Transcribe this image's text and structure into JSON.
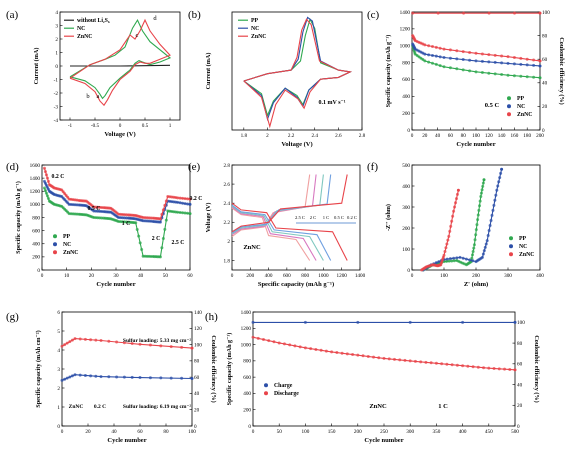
{
  "figure": "battery electrochemistry multi-panel figure",
  "chart_data": [
    {
      "panel": "(a)",
      "type": "line",
      "xlabel": "Voltage (V)",
      "ylabel": "Current (mA)",
      "xlim": [
        -1.2,
        1.2
      ],
      "ylim": [
        -4,
        4
      ],
      "xticks": [
        -1.0,
        -0.5,
        0.0,
        0.5,
        1.0
      ],
      "yticks": [
        -4,
        -3,
        -2,
        -1,
        0,
        1,
        2,
        3,
        4
      ],
      "legend": [
        "without Li₂S₆",
        "NC",
        "ZnNC"
      ],
      "annotations": [
        "a",
        "b",
        "c",
        "d"
      ],
      "series": [
        {
          "name": "without Li₂S₆",
          "color": "#222222",
          "x": [
            -1.0,
            0.0,
            1.0
          ],
          "y": [
            0.0,
            0.0,
            0.05
          ]
        },
        {
          "name": "NC",
          "color": "#2fa84f",
          "x": [
            -1.0,
            -0.7,
            -0.5,
            -0.4,
            -0.35,
            -0.3,
            -0.2,
            0.0,
            0.2,
            0.3,
            0.38,
            0.45,
            0.6,
            0.8,
            1.0,
            0.8,
            0.6,
            0.45,
            0.35,
            0.25,
            0.1,
            -0.1,
            -0.3,
            -0.6,
            -1.0
          ],
          "y": [
            -0.8,
            -1.1,
            -1.6,
            -2.1,
            -2.4,
            -2.2,
            -1.6,
            -0.9,
            -0.3,
            0.2,
            0.4,
            0.3,
            0.1,
            0.3,
            0.6,
            1.2,
            1.8,
            2.6,
            3.4,
            2.8,
            1.4,
            0.8,
            0.5,
            0.1,
            -0.8
          ]
        },
        {
          "name": "ZnNC",
          "color": "#e8444a",
          "x": [
            -1.0,
            -0.7,
            -0.5,
            -0.4,
            -0.32,
            -0.25,
            -0.15,
            0.0,
            0.2,
            0.3,
            0.4,
            0.5,
            0.6,
            0.8,
            1.0,
            0.8,
            0.6,
            0.5,
            0.4,
            0.3,
            0.2,
            0.0,
            -0.3,
            -0.6,
            -1.0
          ],
          "y": [
            -0.9,
            -1.3,
            -1.9,
            -2.6,
            -2.9,
            -2.5,
            -1.8,
            -1.0,
            -0.4,
            0.1,
            0.3,
            0.2,
            0.2,
            0.5,
            0.8,
            1.6,
            2.6,
            3.4,
            2.6,
            2.0,
            2.3,
            1.2,
            0.5,
            0.1,
            -0.9
          ]
        }
      ]
    },
    {
      "panel": "(b)",
      "type": "line",
      "xlabel": "Voltage (V)",
      "ylabel": "Current (mA)",
      "xlim": [
        1.7,
        2.8
      ],
      "ylim": [
        -3.0,
        3.5
      ],
      "xticks": [
        1.8,
        2.0,
        2.2,
        2.4,
        2.6,
        2.8
      ],
      "yticks": [],
      "legend": [
        "PP",
        "NC",
        "ZnNC"
      ],
      "annotation": "0.1 mV s⁻¹",
      "series": [
        {
          "name": "PP",
          "color": "#2fa84f",
          "x": [
            1.8,
            1.95,
            2.0,
            2.05,
            2.15,
            2.25,
            2.3,
            2.35,
            2.45,
            2.6,
            2.7,
            2.6,
            2.45,
            2.4,
            2.36,
            2.32,
            2.28,
            2.2,
            2.0,
            1.8
          ],
          "y": [
            -0.3,
            -1.0,
            -2.2,
            -1.4,
            -0.7,
            -1.1,
            -1.6,
            -0.8,
            -0.2,
            -0.1,
            0.2,
            0.3,
            0.7,
            2.6,
            3.1,
            2.2,
            0.8,
            0.3,
            0.1,
            -0.3
          ]
        },
        {
          "name": "NC",
          "color": "#2c4fa8",
          "x": [
            1.8,
            1.95,
            2.0,
            2.05,
            2.15,
            2.25,
            2.3,
            2.35,
            2.45,
            2.6,
            2.7,
            2.6,
            2.45,
            2.38,
            2.34,
            2.3,
            2.26,
            2.2,
            2.0,
            1.8
          ],
          "y": [
            -0.3,
            -1.1,
            -2.4,
            -1.5,
            -0.7,
            -1.2,
            -1.7,
            -0.8,
            -0.2,
            -0.1,
            0.2,
            0.3,
            0.8,
            3.0,
            3.2,
            2.4,
            0.9,
            0.3,
            0.1,
            -0.3
          ]
        },
        {
          "name": "ZnNC",
          "color": "#e8444a",
          "x": [
            1.8,
            1.95,
            2.02,
            2.07,
            2.15,
            2.26,
            2.31,
            2.36,
            2.45,
            2.6,
            2.7,
            2.6,
            2.44,
            2.37,
            2.33,
            2.29,
            2.25,
            2.2,
            2.0,
            1.8
          ],
          "y": [
            -0.3,
            -1.2,
            -2.8,
            -1.6,
            -0.8,
            -1.3,
            -1.8,
            -0.9,
            -0.2,
            -0.1,
            0.2,
            0.3,
            0.8,
            2.8,
            3.1,
            2.5,
            1.0,
            0.3,
            0.1,
            -0.3
          ]
        }
      ]
    },
    {
      "panel": "(c)",
      "type": "scatter",
      "xlabel": "Cycle number",
      "ylabel": "Specific capacity (mAh g⁻¹)",
      "y2label": "Coulombic efficiency (%)",
      "xlim": [
        0,
        200
      ],
      "ylim": [
        0,
        1400
      ],
      "y2lim": [
        0,
        100
      ],
      "xticks": [
        0,
        20,
        40,
        60,
        80,
        100,
        120,
        140,
        160,
        180,
        200
      ],
      "yticks": [
        0,
        200,
        400,
        600,
        800,
        1000,
        1200,
        1400
      ],
      "y2ticks": [
        0,
        20,
        40,
        60,
        80,
        100
      ],
      "legend": [
        "PP",
        "NC",
        "ZnNC"
      ],
      "annotation": "0.5 C",
      "series": [
        {
          "name": "PP",
          "color": "#2fa84f",
          "x": [
            1,
            5,
            20,
            50,
            100,
            150,
            200
          ],
          "y": [
            1000,
            900,
            820,
            750,
            690,
            650,
            620
          ]
        },
        {
          "name": "NC",
          "color": "#2c4fa8",
          "x": [
            1,
            5,
            20,
            50,
            100,
            150,
            200
          ],
          "y": [
            1020,
            960,
            900,
            860,
            820,
            790,
            760
          ]
        },
        {
          "name": "ZnNC",
          "color": "#e8444a",
          "x": [
            1,
            5,
            20,
            50,
            100,
            150,
            200
          ],
          "y": [
            1120,
            1060,
            1010,
            960,
            910,
            870,
            820
          ]
        },
        {
          "name": "ZnNC CE",
          "color": "#e8444a",
          "axis": "y2",
          "x": [
            1,
            200
          ],
          "y": [
            99,
            99
          ]
        }
      ]
    },
    {
      "panel": "(d)",
      "type": "scatter",
      "xlabel": "Cycle number",
      "ylabel": "Specific capacity (mAh g⁻¹)",
      "xlim": [
        0,
        60
      ],
      "ylim": [
        0,
        1600
      ],
      "xticks": [
        0,
        10,
        20,
        30,
        40,
        50,
        60
      ],
      "yticks": [
        0,
        200,
        400,
        600,
        800,
        1000,
        1200,
        1400,
        1600
      ],
      "legend": [
        "PP",
        "NC",
        "ZnNC"
      ],
      "rate_labels": [
        "0.2 C",
        "0.5 C",
        "1 C",
        "2 C",
        "2.5 C",
        "0.2 C"
      ],
      "series": [
        {
          "name": "PP",
          "color": "#2fa84f",
          "x": [
            1,
            3,
            5,
            8,
            11,
            15,
            18,
            21,
            25,
            28,
            31,
            35,
            38,
            41,
            45,
            48,
            51,
            55,
            60
          ],
          "y": [
            1250,
            1050,
            1000,
            970,
            860,
            850,
            840,
            800,
            790,
            780,
            740,
            730,
            720,
            210,
            205,
            200,
            900,
            880,
            860
          ]
        },
        {
          "name": "NC",
          "color": "#2c4fa8",
          "x": [
            1,
            3,
            5,
            8,
            11,
            15,
            18,
            21,
            25,
            28,
            31,
            35,
            38,
            41,
            45,
            48,
            51,
            55,
            60
          ],
          "y": [
            1350,
            1200,
            1150,
            1120,
            1000,
            990,
            980,
            900,
            890,
            880,
            800,
            790,
            780,
            750,
            740,
            730,
            1050,
            1030,
            1000
          ]
        },
        {
          "name": "ZnNC",
          "color": "#e8444a",
          "x": [
            1,
            3,
            5,
            8,
            11,
            15,
            18,
            21,
            25,
            28,
            31,
            35,
            38,
            41,
            45,
            48,
            51,
            55,
            60
          ],
          "y": [
            1550,
            1300,
            1250,
            1220,
            1080,
            1060,
            1050,
            960,
            950,
            940,
            850,
            840,
            830,
            800,
            790,
            780,
            1120,
            1100,
            1080
          ]
        }
      ]
    },
    {
      "panel": "(e)",
      "type": "line",
      "xlabel": "Specific capacity (mAh g⁻¹)",
      "ylabel": "Voltage (V)",
      "xlim": [
        0,
        1400
      ],
      "ylim": [
        1.7,
        2.8
      ],
      "xticks": [
        0,
        200,
        400,
        600,
        800,
        1000,
        1200,
        1400
      ],
      "yticks": [
        1.8,
        2.0,
        2.2,
        2.4,
        2.6,
        2.8
      ],
      "annotation": "ZnNC",
      "rate_labels": [
        "2.5 C",
        "2 C",
        "1 C",
        "0.5 C",
        "0.2 C"
      ],
      "series": [
        {
          "name": "2.5 C",
          "color": "#f0a0a0",
          "x": [
            0,
            100,
            330,
            400,
            700,
            850
          ],
          "y": [
            2.35,
            2.28,
            2.25,
            2.06,
            2.02,
            1.8
          ],
          "charge_x": [
            0,
            100,
            350,
            450,
            800,
            850
          ],
          "charge_y": [
            2.05,
            2.12,
            2.15,
            2.3,
            2.36,
            2.7
          ]
        },
        {
          "name": "2 C",
          "color": "#d878c0",
          "x": [
            0,
            100,
            340,
            420,
            780,
            920
          ],
          "y": [
            2.36,
            2.29,
            2.26,
            2.08,
            2.03,
            1.8
          ],
          "charge_x": [
            0,
            100,
            360,
            470,
            880,
            920
          ],
          "charge_y": [
            2.07,
            2.13,
            2.16,
            2.31,
            2.37,
            2.7
          ]
        },
        {
          "name": "1 C",
          "color": "#80c8c0",
          "x": [
            0,
            100,
            350,
            440,
            850,
            1000
          ],
          "y": [
            2.37,
            2.3,
            2.27,
            2.1,
            2.05,
            1.8
          ],
          "charge_x": [
            0,
            100,
            370,
            490,
            960,
            1000
          ],
          "charge_y": [
            2.08,
            2.14,
            2.17,
            2.32,
            2.38,
            2.7
          ]
        },
        {
          "name": "0.5 C",
          "color": "#70a0e0",
          "x": [
            0,
            100,
            360,
            460,
            930,
            1080
          ],
          "y": [
            2.38,
            2.31,
            2.28,
            2.12,
            2.07,
            1.8
          ],
          "charge_x": [
            0,
            100,
            380,
            510,
            1040,
            1080
          ],
          "charge_y": [
            2.09,
            2.15,
            2.18,
            2.33,
            2.39,
            2.7
          ]
        },
        {
          "name": "0.2 C",
          "color": "#e8444a",
          "x": [
            0,
            100,
            380,
            480,
            1100,
            1260
          ],
          "y": [
            2.4,
            2.33,
            2.3,
            2.14,
            2.1,
            1.8
          ],
          "charge_x": [
            0,
            100,
            400,
            530,
            1200,
            1260
          ],
          "charge_y": [
            2.1,
            2.16,
            2.2,
            2.34,
            2.4,
            2.7
          ]
        }
      ]
    },
    {
      "panel": "(f)",
      "type": "scatter",
      "xlabel": "Z' (ohm)",
      "ylabel": "-Z'' (ohm)",
      "xlim": [
        0,
        400
      ],
      "ylim": [
        0,
        500
      ],
      "xticks": [
        0,
        100,
        200,
        300,
        400
      ],
      "yticks": [
        0,
        100,
        200,
        300,
        400,
        500
      ],
      "legend": [
        "PP",
        "NC",
        "ZnNC"
      ],
      "series": [
        {
          "name": "PP",
          "color": "#2fa84f",
          "x": [
            35,
            60,
            100,
            140,
            170,
            185,
            195,
            205,
            215,
            225
          ],
          "y": [
            0,
            20,
            40,
            45,
            25,
            40,
            120,
            240,
            350,
            430
          ]
        },
        {
          "name": "NC",
          "color": "#2c4fa8",
          "x": [
            35,
            60,
            100,
            150,
            200,
            220,
            235,
            250,
            265,
            280
          ],
          "y": [
            0,
            25,
            50,
            60,
            40,
            60,
            140,
            260,
            380,
            480
          ]
        },
        {
          "name": "ZnNC",
          "color": "#e8444a",
          "x": [
            30,
            45,
            65,
            80,
            90,
            100,
            115,
            130,
            145
          ],
          "y": [
            0,
            15,
            25,
            20,
            25,
            70,
            160,
            280,
            380
          ]
        }
      ]
    },
    {
      "panel": "(g)",
      "type": "scatter",
      "xlabel": "Cycle number",
      "ylabel": "Specific capacity (mAh cm⁻²)",
      "y2label": "Coulombic efficiency (%)",
      "xlim": [
        0,
        100
      ],
      "ylim": [
        0,
        6
      ],
      "y2lim": [
        0,
        140
      ],
      "xticks": [
        0,
        20,
        40,
        60,
        80,
        100
      ],
      "yticks": [
        0,
        1,
        2,
        3,
        4,
        5,
        6
      ],
      "y2ticks": [
        0,
        20,
        40,
        60,
        80,
        100,
        120,
        140
      ],
      "annotations": [
        "Sulfur loading: 5.33 mg cm⁻²",
        "Sulfur loading: 6.19 mg cm⁻²",
        "ZnNC",
        "0.2 C"
      ],
      "series": [
        {
          "name": "5.33 mg cm⁻²",
          "color": "#e8444a",
          "x": [
            0,
            10,
            30,
            60,
            100
          ],
          "y": [
            4.2,
            4.6,
            4.5,
            4.3,
            4.1
          ]
        },
        {
          "name": "6.19 mg cm⁻²",
          "color": "#2c4fa8",
          "x": [
            0,
            10,
            30,
            60,
            100
          ],
          "y": [
            2.4,
            2.7,
            2.6,
            2.55,
            2.5
          ]
        }
      ]
    },
    {
      "panel": "(h)",
      "type": "scatter",
      "xlabel": "Cycle number",
      "ylabel": "Specific capacity (mAh g⁻¹)",
      "y2label": "Coulombic efficiency (%)",
      "xlim": [
        0,
        500
      ],
      "ylim": [
        0,
        1400
      ],
      "y2lim": [
        0,
        110
      ],
      "xticks": [
        0,
        50,
        100,
        150,
        200,
        250,
        300,
        350,
        400,
        450,
        500
      ],
      "yticks": [
        0,
        200,
        400,
        600,
        800,
        1000,
        1200,
        1400
      ],
      "y2ticks": [
        0,
        20,
        40,
        60,
        80,
        100
      ],
      "legend": [
        "Charge",
        "Discharge"
      ],
      "annotations": [
        "ZnNC",
        "1 C"
      ],
      "series": [
        {
          "name": "Charge",
          "color": "#2c4fa8",
          "axis": "y2",
          "x": [
            0,
            500
          ],
          "y": [
            100,
            100
          ]
        },
        {
          "name": "Discharge",
          "color": "#e8444a",
          "x": [
            0,
            50,
            100,
            150,
            200,
            250,
            300,
            350,
            400,
            450,
            500
          ],
          "y": [
            1090,
            1020,
            960,
            910,
            870,
            830,
            800,
            770,
            740,
            710,
            690
          ]
        }
      ]
    }
  ]
}
